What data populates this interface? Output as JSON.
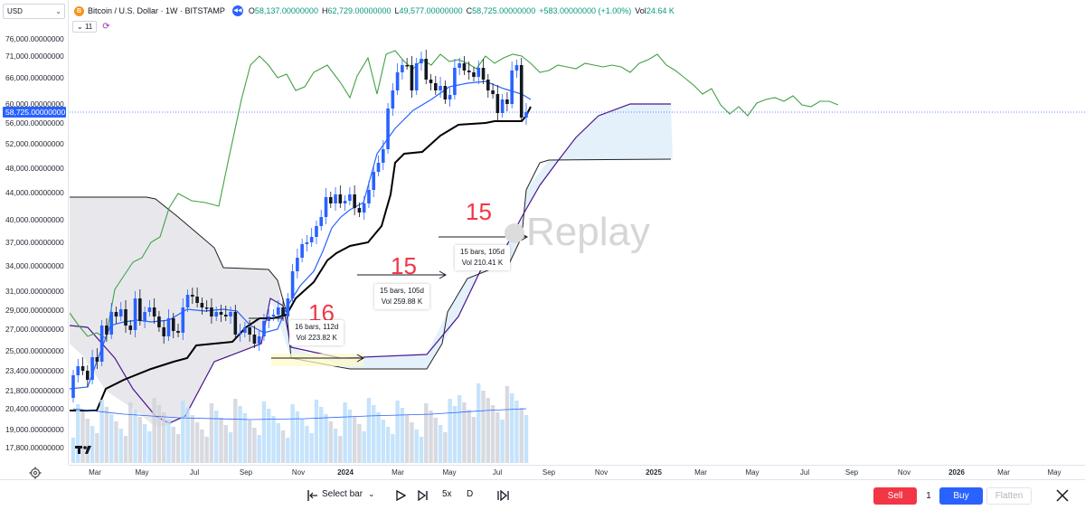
{
  "currency": "USD",
  "legend": {
    "symbol_icon": "B",
    "title": "Bitcoin / U.S. Dollar · 1W · BITSTAMP",
    "open_key": "O",
    "open": "58,137.00000000",
    "high_key": "H",
    "high": "62,729.00000000",
    "low_key": "L",
    "low": "49,577.00000000",
    "close_key": "C",
    "close": "58,725.00000000",
    "change": "+583.00000000 (+1.00%)",
    "vol_key": "Vol",
    "vol": "24.64 K"
  },
  "indicators": {
    "count": "11"
  },
  "price_axis": {
    "ticks": [
      "76,000.00000000",
      "71,000.00000000",
      "66,000.00000000",
      "60,000.00000000",
      "56,000.00000000",
      "52,000.00000000",
      "48,000.00000000",
      "44,000.00000000",
      "40,000.00000000",
      "37,000.00000000",
      "34,000.00000000",
      "31,000.00000000",
      "29,000.00000000",
      "27,000.00000000",
      "25,000.00000000",
      "23,400.00000000",
      "21,800.00000000",
      "20,400.00000000",
      "19,000.00000000",
      "17,800.00000000"
    ],
    "current_price": "58,725.00000000"
  },
  "time_axis": {
    "ticks": [
      {
        "label": "Mar",
        "bold": false
      },
      {
        "label": "May",
        "bold": false
      },
      {
        "label": "Jul",
        "bold": false
      },
      {
        "label": "Sep",
        "bold": false
      },
      {
        "label": "Nov",
        "bold": false
      },
      {
        "label": "2024",
        "bold": true
      },
      {
        "label": "Mar",
        "bold": false
      },
      {
        "label": "May",
        "bold": false
      },
      {
        "label": "Jul",
        "bold": false
      },
      {
        "label": "Sep",
        "bold": false
      },
      {
        "label": "Nov",
        "bold": false
      },
      {
        "label": "2025",
        "bold": true
      },
      {
        "label": "Mar",
        "bold": false
      },
      {
        "label": "May",
        "bold": false
      },
      {
        "label": "Jul",
        "bold": false
      },
      {
        "label": "Sep",
        "bold": false
      },
      {
        "label": "Nov",
        "bold": false
      },
      {
        "label": "2026",
        "bold": true
      },
      {
        "label": "Mar",
        "bold": false
      },
      {
        "label": "May",
        "bold": false
      }
    ]
  },
  "annotations": {
    "a1": "16",
    "a2": "15",
    "a3": "15",
    "r1_bars": "16 bars, 112d",
    "r1_vol": "Vol 223.82 K",
    "r2_bars": "15 bars, 105d",
    "r2_vol": "Vol 259.88 K",
    "r3_bars": "15 bars, 105d",
    "r3_vol": "Vol 210.41 K"
  },
  "watermark": "Replay",
  "toolbar": {
    "select_bar": "Select bar",
    "speed": "5x",
    "interval": "D",
    "sell": "Sell",
    "quantity": "1",
    "buy": "Buy",
    "flatten": "Flatten"
  },
  "colors": {
    "up": "#2962ff",
    "down": "#131722",
    "tenkan": "#2962ff",
    "kijun": "#000000",
    "chikou": "#43a047",
    "span_b": "#4a148c",
    "cloud_bull": "#e3f0fb",
    "cloud_bear": "#e6e6ea",
    "annotation": "#f23645"
  }
}
